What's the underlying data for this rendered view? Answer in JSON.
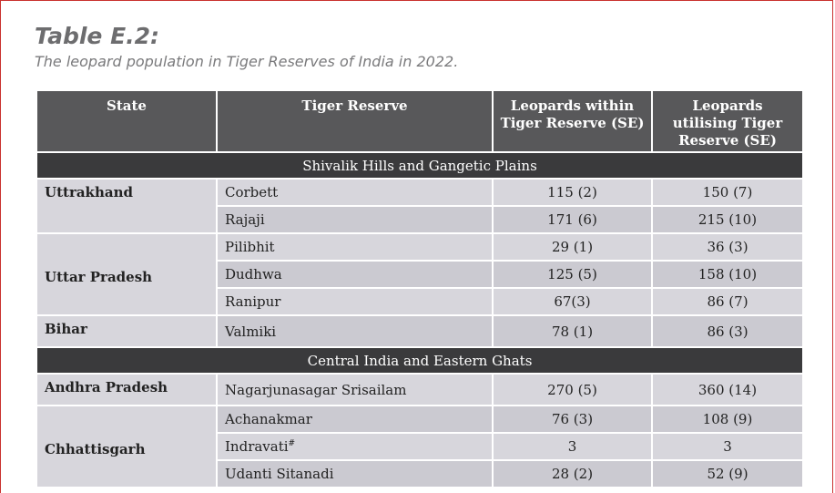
{
  "header": {
    "title": "Table E.2:",
    "subtitle": "The leopard population in Tiger Reserves of India in 2022."
  },
  "table": {
    "columns": [
      "State",
      "Tiger Reserve",
      "Leopards within Tiger Reserve (SE)",
      "Leopards utilising Tiger Reserve (SE)"
    ],
    "sections": [
      {
        "title": "Shivalik Hills and Gangetic Plains",
        "groups": [
          {
            "state": "Uttrakhand",
            "rows": [
              {
                "reserve": "Corbett",
                "within": "115 (2)",
                "utilising": "150 (7)"
              },
              {
                "reserve": "Rajaji",
                "within": "171 (6)",
                "utilising": "215 (10)"
              }
            ]
          },
          {
            "state": "Uttar Pradesh",
            "rows": [
              {
                "reserve": "Pilibhit",
                "within": "29 (1)",
                "utilising": "36 (3)"
              },
              {
                "reserve": "Dudhwa",
                "within": "125 (5)",
                "utilising": "158 (10)"
              },
              {
                "reserve": "Ranipur",
                "within": "67(3)",
                "utilising": "86 (7)"
              }
            ]
          },
          {
            "state": "Bihar",
            "rows": [
              {
                "reserve": "Valmiki",
                "within": "78 (1)",
                "utilising": "86 (3)"
              }
            ]
          }
        ]
      },
      {
        "title": "Central India and Eastern Ghats",
        "groups": [
          {
            "state": "Andhra Pradesh",
            "rows": [
              {
                "reserve": "Nagarjunasagar Srisailam",
                "within": "270 (5)",
                "utilising": "360 (14)"
              }
            ]
          },
          {
            "state": "Chhattisgarh",
            "rows": [
              {
                "reserve": "Achanakmar",
                "within": "76 (3)",
                "utilising": "108 (9)"
              },
              {
                "reserve": "Indravati",
                "note": "#",
                "within": "3",
                "utilising": "3"
              },
              {
                "reserve": "Udanti Sitanadi",
                "within": "28 (2)",
                "utilising": "52 (9)"
              }
            ]
          }
        ]
      }
    ]
  }
}
